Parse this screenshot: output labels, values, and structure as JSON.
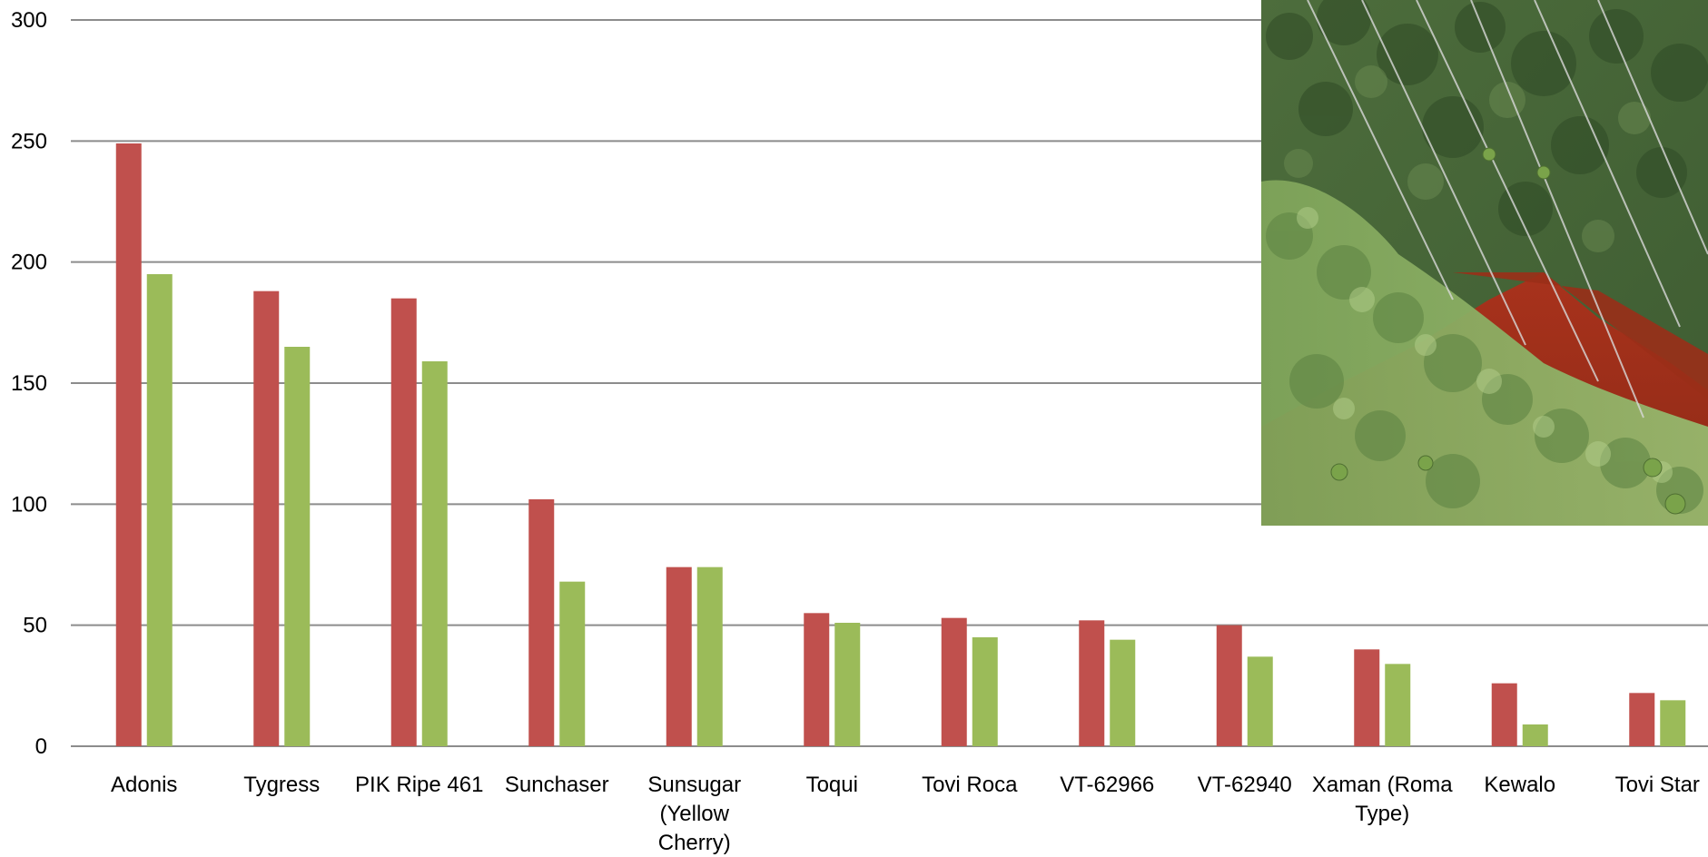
{
  "chart_data": {
    "type": "bar",
    "title": "",
    "xlabel": "",
    "ylabel": "",
    "ylim": [
      0,
      300
    ],
    "yticks": [
      0,
      50,
      100,
      150,
      200,
      250,
      300
    ],
    "grid": true,
    "legend": "none",
    "categories": [
      "Adonis",
      "Tygress",
      "PIK Ripe 461",
      "Sunchaser",
      "Sunsugar (Yellow Cherry)",
      "Toqui",
      "Tovi Roca",
      "VT-62966",
      "VT-62940",
      "Xaman (Roma Type)",
      "Kewalo",
      "Tovi Star"
    ],
    "category_lines": [
      [
        "Adonis"
      ],
      [
        "Tygress"
      ],
      [
        "PIK Ripe 461"
      ],
      [
        "Sunchaser"
      ],
      [
        "Sunsugar",
        "(Yellow",
        "Cherry)"
      ],
      [
        "Toqui"
      ],
      [
        "Tovi Roca"
      ],
      [
        "VT-62966"
      ],
      [
        "VT-62940"
      ],
      [
        "Xaman (Roma",
        "Type)"
      ],
      [
        "Kewalo"
      ],
      [
        "Tovi Star"
      ]
    ],
    "series": [
      {
        "color": "#c0504d",
        "values": [
          249,
          188,
          185,
          102,
          74,
          55,
          53,
          52,
          50,
          40,
          26,
          22
        ]
      },
      {
        "color": "#9bbb59",
        "values": [
          195,
          165,
          159,
          68,
          74,
          51,
          45,
          44,
          37,
          34,
          9,
          19
        ]
      }
    ]
  },
  "photo": {
    "subject": "tomato-plants-trellis-photo"
  }
}
